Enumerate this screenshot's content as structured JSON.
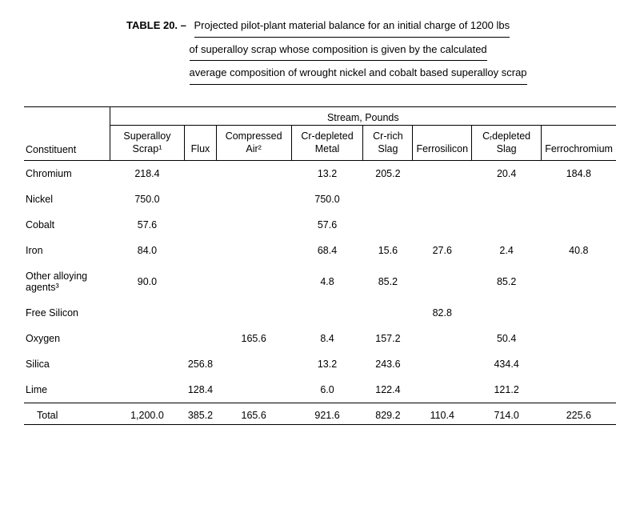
{
  "caption": {
    "label": "TABLE 20.  –",
    "line1": "Projected pilot-plant material balance for an initial charge of 1200 lbs",
    "line2": "of superalloy scrap whose composition is given by the calculated",
    "line3": "average composition of wrought nickel and cobalt based superalloy scrap"
  },
  "headers": {
    "stream": "Stream, Pounds",
    "constituent": "Constituent",
    "col1": "Superalloy Scrap¹",
    "col2": "Flux",
    "col3": "Compressed Air²",
    "col4": "Cr-depleted Metal",
    "col5": "Cr-rich Slag",
    "col6": "Ferrosilicon",
    "col7": "Cᵣdepleted Slag",
    "col8": "Ferrochromium"
  },
  "rows": [
    {
      "name": "Chromium",
      "v": [
        "218.4",
        "",
        "",
        "13.2",
        "205.2",
        "",
        "20.4",
        "184.8"
      ]
    },
    {
      "name": "Nickel",
      "v": [
        "750.0",
        "",
        "",
        "750.0",
        "",
        "",
        "",
        ""
      ]
    },
    {
      "name": "Cobalt",
      "v": [
        "57.6",
        "",
        "",
        "57.6",
        "",
        "",
        "",
        ""
      ]
    },
    {
      "name": "Iron",
      "v": [
        "84.0",
        "",
        "",
        "68.4",
        "15.6",
        "27.6",
        "2.4",
        "40.8"
      ]
    },
    {
      "name": "Other alloying agents³",
      "v": [
        "90.0",
        "",
        "",
        "4.8",
        "85.2",
        "",
        "85.2",
        ""
      ]
    },
    {
      "name": "Free Silicon",
      "v": [
        "",
        "",
        "",
        "",
        "",
        "82.8",
        "",
        ""
      ]
    },
    {
      "name": "Oxygen",
      "v": [
        "",
        "",
        "165.6",
        "8.4",
        "157.2",
        "",
        "50.4",
        ""
      ]
    },
    {
      "name": "Silica",
      "v": [
        "",
        "256.8",
        "",
        "13.2",
        "243.6",
        "",
        "434.4",
        ""
      ]
    },
    {
      "name": "Lime",
      "v": [
        "",
        "128.4",
        "",
        "6.0",
        "122.4",
        "",
        "121.2",
        ""
      ]
    }
  ],
  "total": {
    "name": "Total",
    "v": [
      "1,200.0",
      "385.2",
      "165.6",
      "921.6",
      "829.2",
      "110.4",
      "714.0",
      "225.6"
    ]
  }
}
